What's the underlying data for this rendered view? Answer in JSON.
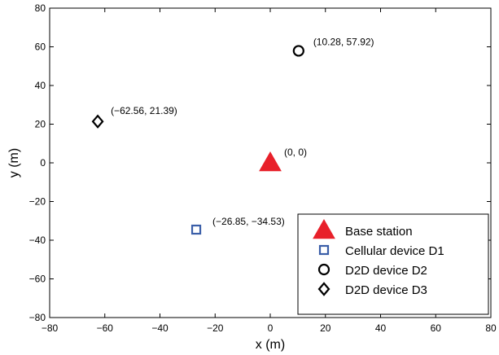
{
  "chart_data": {
    "type": "scatter",
    "xlabel": "x (m)",
    "ylabel": "y (m)",
    "xlim": [
      -80,
      80
    ],
    "ylim": [
      -80,
      80
    ],
    "xticks": [
      -80,
      -60,
      -40,
      -20,
      0,
      20,
      40,
      60,
      80
    ],
    "yticks": [
      -80,
      -60,
      -40,
      -20,
      0,
      20,
      40,
      60,
      80
    ],
    "xtick_labels": [
      "−80",
      "−60",
      "−40",
      "−20",
      "0",
      "20",
      "40",
      "60",
      "80"
    ],
    "ytick_labels": [
      "−80",
      "−60",
      "−40",
      "−20",
      "0",
      "20",
      "40",
      "60",
      "80"
    ],
    "grid": false,
    "legend_position": "bottom-right",
    "series": [
      {
        "name": "Base station",
        "marker": "triangle",
        "color": "#e8202a",
        "x": 0,
        "y": 0,
        "label": "(0, 0)"
      },
      {
        "name": "Cellular device D1",
        "marker": "square",
        "color": "#3a5ea8",
        "x": -26.85,
        "y": -34.53,
        "label": "(−26.85, −34.53)"
      },
      {
        "name": "D2D device D2",
        "marker": "circle",
        "color": "#000000",
        "x": 10.28,
        "y": 57.92,
        "label": "(10.28, 57.92)"
      },
      {
        "name": "D2D device D3",
        "marker": "diamond",
        "color": "#000000",
        "x": -62.56,
        "y": 21.39,
        "label": "(−62.56, 21.39)"
      }
    ]
  }
}
